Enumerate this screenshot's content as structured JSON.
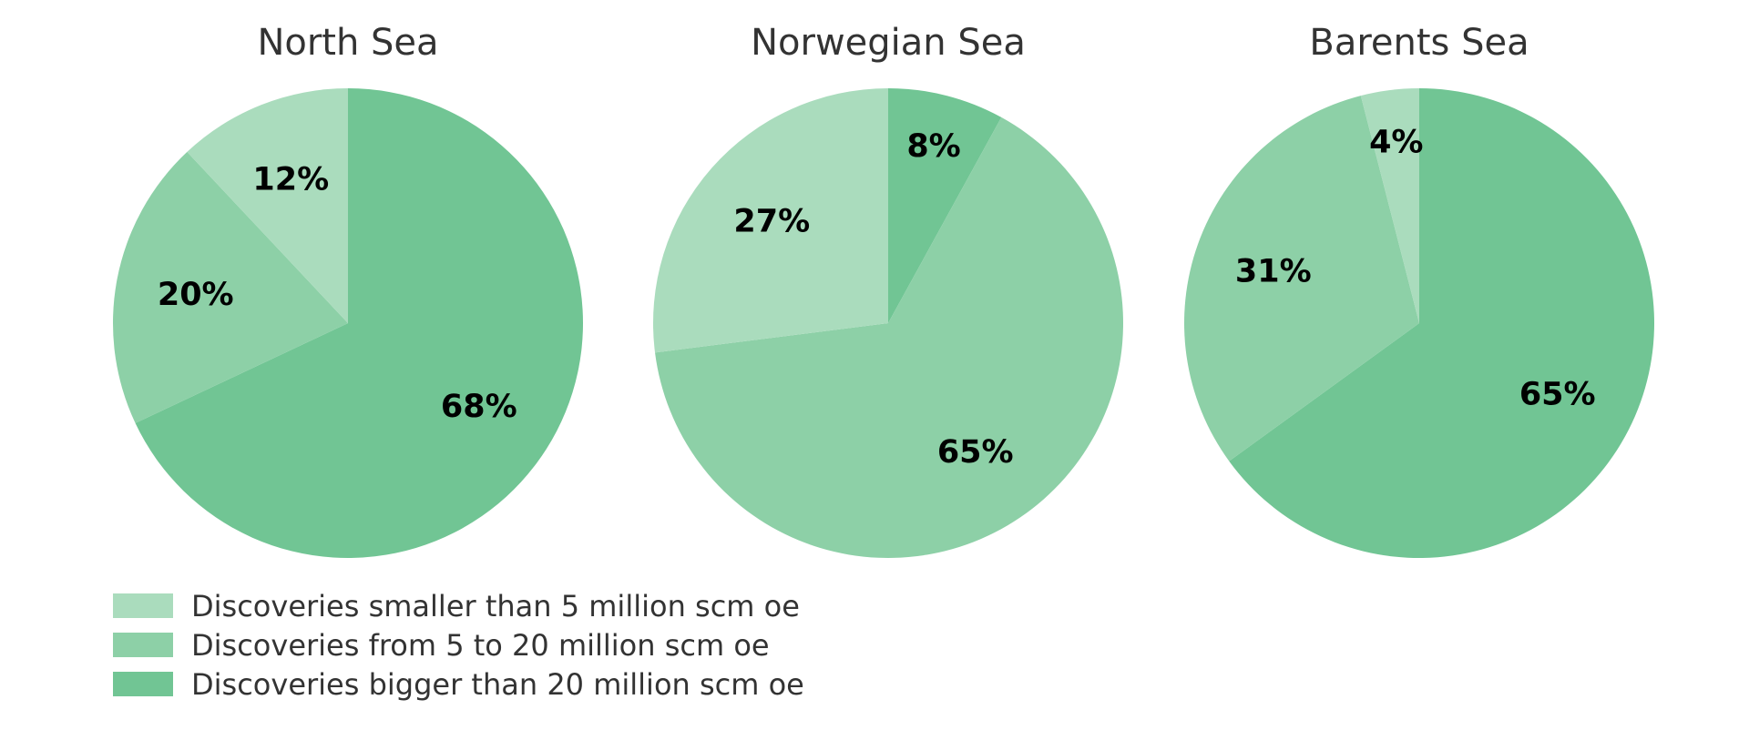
{
  "chart_data": [
    {
      "type": "pie",
      "title": "North Sea",
      "categories": [
        "Discoveries smaller than 5 million scm oe",
        "Discoveries from 5 to 20 million scm oe",
        "Discoveries bigger than 20 million scm oe"
      ],
      "values": [
        12,
        20,
        68
      ],
      "labels": [
        "12%",
        "20%",
        "68%"
      ]
    },
    {
      "type": "pie",
      "title": "Norwegian Sea",
      "categories": [
        "Discoveries smaller than 5 million scm oe",
        "Discoveries from 5 to 20 million scm oe",
        "Discoveries bigger than 20 million scm oe"
      ],
      "values": [
        27,
        65,
        8
      ],
      "labels": [
        "27%",
        "65%",
        "8%"
      ]
    },
    {
      "type": "pie",
      "title": "Barents Sea",
      "categories": [
        "Discoveries smaller than 5 million scm oe",
        "Discoveries from 5 to 20 million scm oe",
        "Discoveries bigger than 20 million scm oe"
      ],
      "values": [
        4,
        31,
        65
      ],
      "labels": [
        "4%",
        "31%",
        "65%"
      ]
    }
  ],
  "legend": [
    {
      "label": "Discoveries smaller than 5 million scm oe",
      "color": "#aadcbd"
    },
    {
      "label": "Discoveries from 5 to 20 million scm oe",
      "color": "#8dd0a7"
    },
    {
      "label": "Discoveries bigger than 20 million scm oe",
      "color": "#71c594"
    }
  ]
}
